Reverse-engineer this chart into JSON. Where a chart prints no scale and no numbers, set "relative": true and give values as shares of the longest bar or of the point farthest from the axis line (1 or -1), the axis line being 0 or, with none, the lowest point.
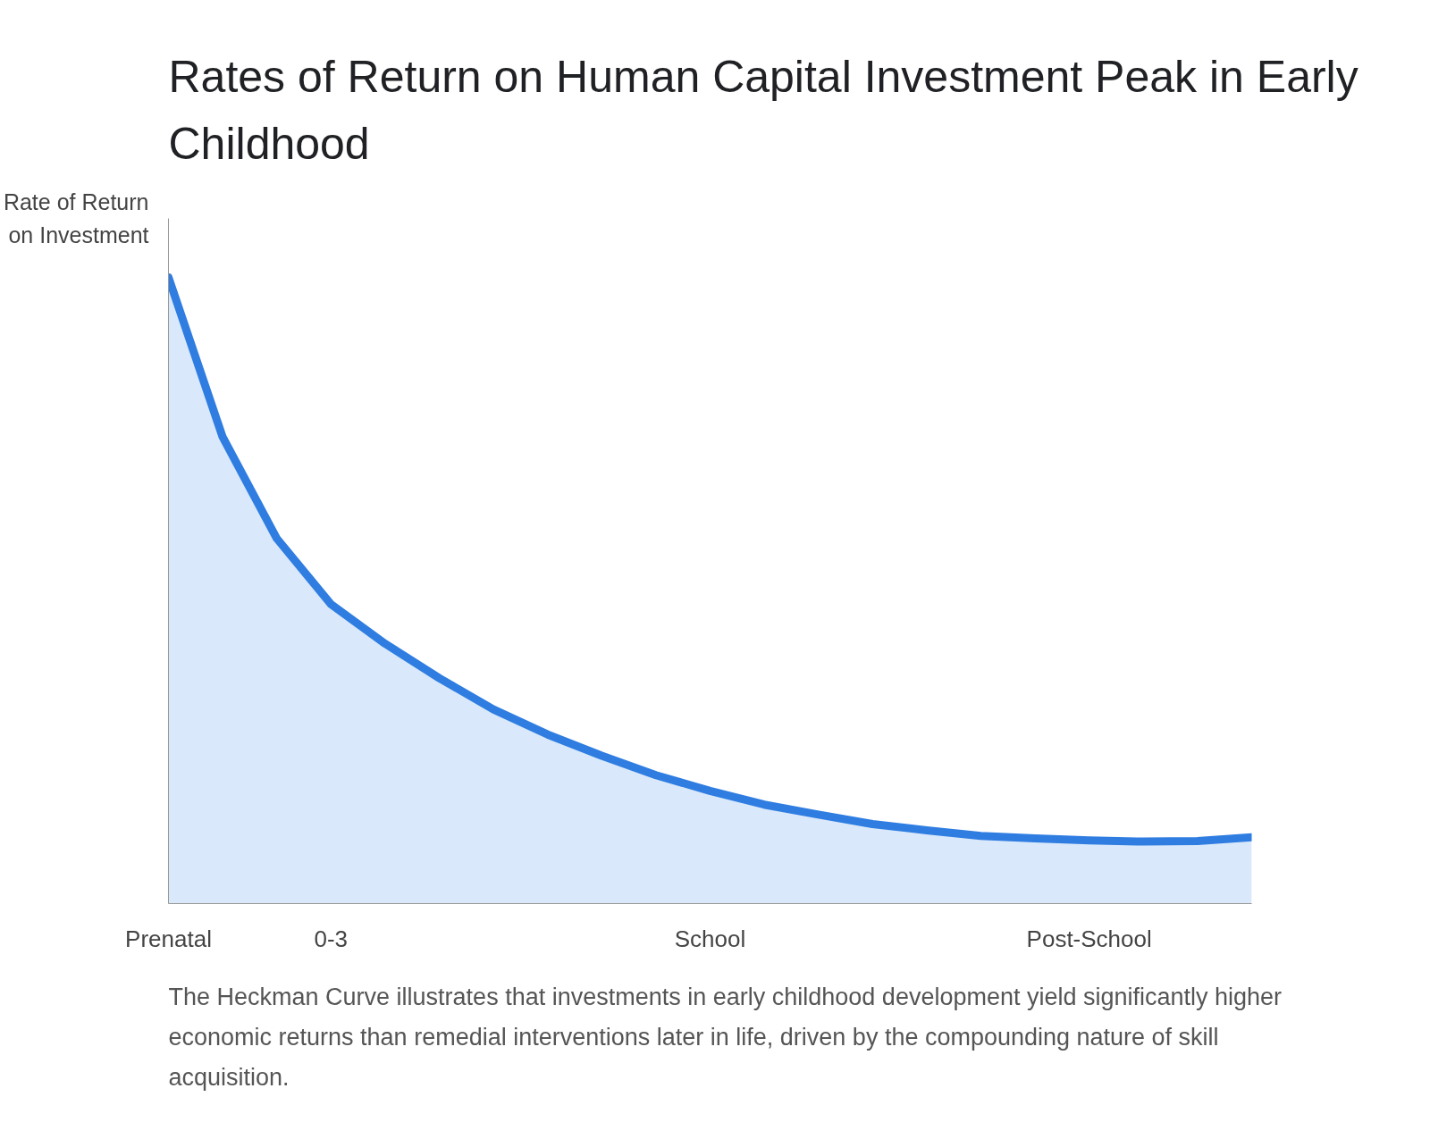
{
  "chart_data": {
    "type": "area",
    "title": "Rates of Return on Human Capital Investment Peak in Early\nChildhood",
    "ylabel": "Rate of Return\non Investment",
    "relative": true,
    "grid": false,
    "categories": [
      "Prenatal",
      null,
      null,
      "0-3",
      null,
      null,
      null,
      null,
      null,
      null,
      "School",
      null,
      null,
      null,
      null,
      null,
      null,
      "Post-School",
      null,
      null,
      null
    ],
    "series": [
      {
        "color": "#2f7de1",
        "values": [
          1.0,
          0.745,
          0.583,
          0.478,
          0.415,
          0.36,
          0.31,
          0.27,
          0.236,
          0.205,
          0.18,
          0.158,
          0.142,
          0.127,
          0.117,
          0.108,
          0.104,
          0.101,
          0.099,
          0.1,
          0.106
        ]
      }
    ],
    "annotations": [
      "The Heckman Curve illustrates that investments in early childhood development yield significantly higher economic returns than remedial interventions later in life, driven by the compounding nature of skill acquisition."
    ]
  }
}
